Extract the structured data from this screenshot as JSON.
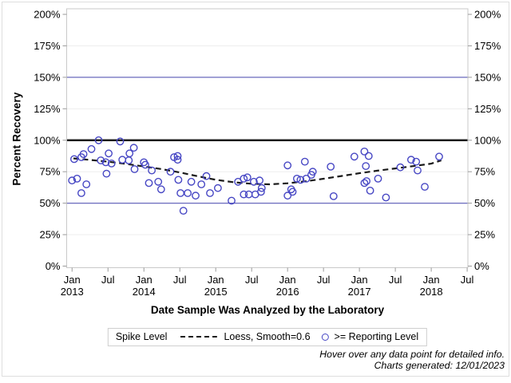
{
  "chart_data": {
    "type": "scatter",
    "title": "",
    "xlabel": "Date Sample Was Analyzed by the Laboratory",
    "ylabel": "Percent Recovery",
    "xlim": [
      2012.925,
      2018.51
    ],
    "ylim": [
      0,
      200
    ],
    "grid": "horizontal-light",
    "y_ticks": [
      {
        "value": 0,
        "label": "0%"
      },
      {
        "value": 25,
        "label": "25%"
      },
      {
        "value": 50,
        "label": "50%"
      },
      {
        "value": 75,
        "label": "75%"
      },
      {
        "value": 100,
        "label": "100%"
      },
      {
        "value": 125,
        "label": "125%"
      },
      {
        "value": 150,
        "label": "150%"
      },
      {
        "value": 175,
        "label": "175%"
      },
      {
        "value": 200,
        "label": "200%"
      }
    ],
    "x_ticks": [
      {
        "pos": 2013.0,
        "month": "Jan",
        "year": "2013"
      },
      {
        "pos": 2013.5,
        "month": "Jul"
      },
      {
        "pos": 2014.0,
        "month": "Jan",
        "year": "2014"
      },
      {
        "pos": 2014.5,
        "month": "Jul"
      },
      {
        "pos": 2015.0,
        "month": "Jan",
        "year": "2015"
      },
      {
        "pos": 2015.5,
        "month": "Jul"
      },
      {
        "pos": 2016.0,
        "month": "Jan",
        "year": "2016"
      },
      {
        "pos": 2016.5,
        "month": "Jul"
      },
      {
        "pos": 2017.0,
        "month": "Jan",
        "year": "2017"
      },
      {
        "pos": 2017.5,
        "month": "Jul"
      },
      {
        "pos": 2018.0,
        "month": "Jan",
        "year": "2018"
      },
      {
        "pos": 2018.5,
        "month": "Jul"
      }
    ],
    "reference_lines": [
      {
        "value": 150,
        "color": "#6b6bbd",
        "width": 1.3
      },
      {
        "value": 100,
        "color": "#1a1a1a",
        "width": 2.4
      },
      {
        "value": 50,
        "color": "#6b6bbd",
        "width": 1.3
      }
    ],
    "series": [
      {
        "name": ">= Reporting Level",
        "type": "scatter",
        "marker": "open-circle",
        "color": "#4747c4",
        "points": [
          [
            2013.0,
            68
          ],
          [
            2013.03,
            85
          ],
          [
            2013.07,
            69.5
          ],
          [
            2013.13,
            86.5
          ],
          [
            2013.13,
            58
          ],
          [
            2013.16,
            89
          ],
          [
            2013.2,
            65
          ],
          [
            2013.27,
            93
          ],
          [
            2013.37,
            100
          ],
          [
            2013.4,
            84
          ],
          [
            2013.47,
            82.5
          ],
          [
            2013.48,
            73.5
          ],
          [
            2013.51,
            89.5
          ],
          [
            2013.55,
            81.5
          ],
          [
            2013.67,
            99
          ],
          [
            2013.7,
            84.5
          ],
          [
            2013.79,
            84
          ],
          [
            2013.8,
            89.5
          ],
          [
            2013.86,
            94
          ],
          [
            2013.87,
            77
          ],
          [
            2014.0,
            82.5
          ],
          [
            2014.02,
            80.5
          ],
          [
            2014.07,
            66
          ],
          [
            2014.11,
            76
          ],
          [
            2014.2,
            67
          ],
          [
            2014.24,
            61
          ],
          [
            2014.37,
            75
          ],
          [
            2014.42,
            86.5
          ],
          [
            2014.47,
            87.5
          ],
          [
            2014.47,
            84.5
          ],
          [
            2014.48,
            68.5
          ],
          [
            2014.51,
            58
          ],
          [
            2014.55,
            44
          ],
          [
            2014.61,
            58
          ],
          [
            2014.66,
            67
          ],
          [
            2014.72,
            56
          ],
          [
            2014.8,
            65
          ],
          [
            2014.87,
            71.5
          ],
          [
            2014.92,
            58
          ],
          [
            2015.03,
            62
          ],
          [
            2015.22,
            52
          ],
          [
            2015.31,
            67
          ],
          [
            2015.39,
            69.5
          ],
          [
            2015.39,
            57
          ],
          [
            2015.44,
            70.5
          ],
          [
            2015.46,
            57
          ],
          [
            2015.53,
            67
          ],
          [
            2015.55,
            57
          ],
          [
            2015.61,
            68
          ],
          [
            2015.63,
            59
          ],
          [
            2015.64,
            62
          ],
          [
            2016.0,
            80
          ],
          [
            2016.0,
            56
          ],
          [
            2016.05,
            61
          ],
          [
            2016.07,
            59
          ],
          [
            2016.13,
            69.5
          ],
          [
            2016.18,
            68.5
          ],
          [
            2016.24,
            83
          ],
          [
            2016.26,
            69.5
          ],
          [
            2016.33,
            72.5
          ],
          [
            2016.35,
            75
          ],
          [
            2016.6,
            79
          ],
          [
            2016.64,
            55.5
          ],
          [
            2016.93,
            87
          ],
          [
            2017.07,
            91
          ],
          [
            2017.07,
            66
          ],
          [
            2017.09,
            79.5
          ],
          [
            2017.1,
            67.5
          ],
          [
            2017.13,
            87.5
          ],
          [
            2017.15,
            60
          ],
          [
            2017.26,
            69.5
          ],
          [
            2017.37,
            54.5
          ],
          [
            2017.57,
            78.5
          ],
          [
            2017.72,
            84.5
          ],
          [
            2017.79,
            83
          ],
          [
            2017.81,
            76
          ],
          [
            2017.91,
            63
          ],
          [
            2018.11,
            87
          ]
        ]
      },
      {
        "name": "Loess, Smooth=0.6",
        "type": "line",
        "line_style": "dashed",
        "color": "#1a1a1a",
        "points": [
          [
            2013.02,
            85.6
          ],
          [
            2013.25,
            84.4
          ],
          [
            2013.5,
            83.0
          ],
          [
            2013.75,
            81.2
          ],
          [
            2014.0,
            79.2
          ],
          [
            2014.25,
            77.0
          ],
          [
            2014.5,
            74.4
          ],
          [
            2014.75,
            71.4
          ],
          [
            2015.0,
            68.6
          ],
          [
            2015.25,
            66.6
          ],
          [
            2015.5,
            65.4
          ],
          [
            2015.75,
            65.0
          ],
          [
            2016.0,
            65.8
          ],
          [
            2016.25,
            67.4
          ],
          [
            2016.5,
            69.4
          ],
          [
            2016.75,
            71.6
          ],
          [
            2017.0,
            73.8
          ],
          [
            2017.25,
            75.8
          ],
          [
            2017.5,
            77.6
          ],
          [
            2017.75,
            79.4
          ],
          [
            2018.0,
            81.4
          ],
          [
            2018.14,
            84.0
          ]
        ]
      }
    ],
    "legend": {
      "position": "bottom-center",
      "title": "Spike Level",
      "entries": [
        {
          "symbol": "dashed-line",
          "label": "Loess, Smooth=0.6"
        },
        {
          "symbol": "open-circle",
          "label": ">= Reporting Level"
        }
      ]
    }
  },
  "footer": {
    "hover_note": "Hover over any data point for detailed info.",
    "generated": "Charts generated: 12/01/2023"
  },
  "colors": {
    "marker": "#4747c4",
    "reference_blue": "#6b6bbd",
    "spike_line": "#1a1a1a",
    "grid": "#ededed",
    "plot_border": "#c9c9c9",
    "tick": "#9a9a9a"
  }
}
